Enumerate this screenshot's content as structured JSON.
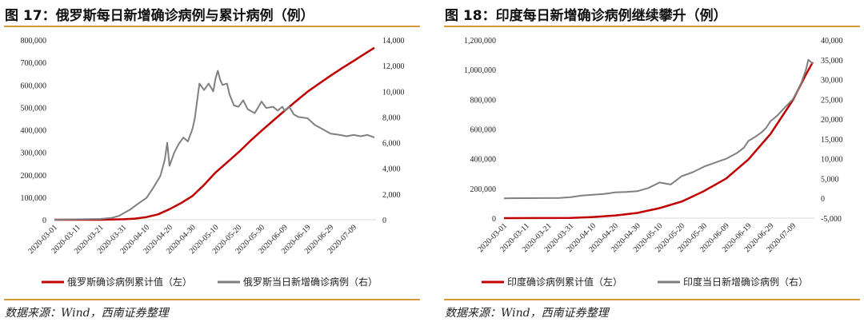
{
  "chart_data": [
    {
      "type": "line",
      "title": "图 17：俄罗斯每日新增确诊病例与累计病例（例）",
      "x_ticks": [
        "2020-03-01",
        "2020-03-11",
        "2020-03-21",
        "2020-03-31",
        "2020-04-10",
        "2020-04-20",
        "2020-04-30",
        "2020-05-10",
        "2020-05-20",
        "2020-05-30",
        "2020-06-09",
        "2020-06-19",
        "2020-06-29",
        "2020-07-09"
      ],
      "ylim_left": [
        0,
        800000
      ],
      "yticks_left": [
        "0",
        "100,000",
        "200,000",
        "300,000",
        "400,000",
        "500,000",
        "600,000",
        "700,000",
        "800,000"
      ],
      "ylim_right": [
        0,
        14000
      ],
      "yticks_right": [
        "0",
        "2,000",
        "4,000",
        "6,000",
        "8,000",
        "10,000",
        "12,000",
        "14,000"
      ],
      "series": [
        {
          "name": "俄罗斯确诊病例累计值（左）",
          "axis": "left",
          "color": "#c00000",
          "points": [
            [
              0,
              0
            ],
            [
              20,
              100
            ],
            [
              30,
              2300
            ],
            [
              35,
              5000
            ],
            [
              40,
              11900
            ],
            [
              45,
              24000
            ],
            [
              50,
              47000
            ],
            [
              55,
              74000
            ],
            [
              60,
              106000
            ],
            [
              65,
              155000
            ],
            [
              70,
              210000
            ],
            [
              75,
              255000
            ],
            [
              80,
              300000
            ],
            [
              85,
              350000
            ],
            [
              90,
              396000
            ],
            [
              95,
              441000
            ],
            [
              100,
              485000
            ],
            [
              105,
              528000
            ],
            [
              110,
              570000
            ],
            [
              115,
              606000
            ],
            [
              120,
              641000
            ],
            [
              125,
              675000
            ],
            [
              130,
              707000
            ],
            [
              135,
              740000
            ],
            [
              139,
              765000
            ]
          ]
        },
        {
          "name": "俄罗斯当日新增确诊病例（右）",
          "axis": "right",
          "color": "#808080",
          "points": [
            [
              0,
              0
            ],
            [
              20,
              60
            ],
            [
              25,
              150
            ],
            [
              28,
              300
            ],
            [
              30,
              500
            ],
            [
              33,
              800
            ],
            [
              36,
              1200
            ],
            [
              40,
              1700
            ],
            [
              43,
              2500
            ],
            [
              46,
              3400
            ],
            [
              48,
              4700
            ],
            [
              49,
              6000
            ],
            [
              50,
              4200
            ],
            [
              52,
              5200
            ],
            [
              54,
              5900
            ],
            [
              56,
              6400
            ],
            [
              58,
              6100
            ],
            [
              60,
              7100
            ],
            [
              61,
              7900
            ],
            [
              63,
              10600
            ],
            [
              65,
              10100
            ],
            [
              67,
              10600
            ],
            [
              69,
              10000
            ],
            [
              70,
              11000
            ],
            [
              71,
              11600
            ],
            [
              72,
              10900
            ],
            [
              73,
              10500
            ],
            [
              75,
              10600
            ],
            [
              76,
              9800
            ],
            [
              78,
              8900
            ],
            [
              80,
              8800
            ],
            [
              82,
              9300
            ],
            [
              84,
              8600
            ],
            [
              87,
              8300
            ],
            [
              89,
              8900
            ],
            [
              90,
              9200
            ],
            [
              92,
              8700
            ],
            [
              95,
              8800
            ],
            [
              97,
              8500
            ],
            [
              99,
              8800
            ],
            [
              100,
              8500
            ],
            [
              102,
              8800
            ],
            [
              104,
              8200
            ],
            [
              106,
              8000
            ],
            [
              110,
              7900
            ],
            [
              113,
              7400
            ],
            [
              116,
              7100
            ],
            [
              120,
              6700
            ],
            [
              124,
              6600
            ],
            [
              127,
              6500
            ],
            [
              130,
              6600
            ],
            [
              133,
              6500
            ],
            [
              136,
              6600
            ],
            [
              139,
              6400
            ]
          ]
        }
      ],
      "legend": [
        "俄罗斯确诊病例累计值（左）",
        "俄罗斯当日新增确诊病例（右）"
      ],
      "source": "数据来源：Wind，西南证券整理"
    },
    {
      "type": "line",
      "title": "图 18：印度每日新增确诊病例继续攀升（例）",
      "x_ticks": [
        "2020-03-01",
        "2020-03-11",
        "2020-03-21",
        "2020-03-31",
        "2020-04-10",
        "2020-04-20",
        "2020-04-30",
        "2020-05-10",
        "2020-05-20",
        "2020-05-30",
        "2020-06-09",
        "2020-06-19",
        "2020-06-29",
        "2020-07-09"
      ],
      "ylim_left": [
        0,
        1200000
      ],
      "yticks_left": [
        "0",
        "200,000",
        "400,000",
        "600,000",
        "800,000",
        "1,000,000",
        "1,200,000"
      ],
      "ylim_right": [
        -5000,
        40000
      ],
      "yticks_right": [
        "-5,000",
        "0",
        "5,000",
        "10,000",
        "15,000",
        "20,000",
        "25,000",
        "30,000",
        "35,000",
        "40,000"
      ],
      "series": [
        {
          "name": "印度确诊病例累计值（左）",
          "axis": "left",
          "color": "#c00000",
          "points": [
            [
              0,
              0
            ],
            [
              30,
              1400
            ],
            [
              40,
              7500
            ],
            [
              50,
              18000
            ],
            [
              60,
              35000
            ],
            [
              70,
              67000
            ],
            [
              80,
              112000
            ],
            [
              90,
              182000
            ],
            [
              100,
              267000
            ],
            [
              110,
              395000
            ],
            [
              120,
              567000
            ],
            [
              130,
              794000
            ],
            [
              136,
              970000
            ],
            [
              139,
              1050000
            ]
          ]
        },
        {
          "name": "印度当日新增确诊病例（右）",
          "axis": "right",
          "color": "#808080",
          "points": [
            [
              0,
              0
            ],
            [
              25,
              100
            ],
            [
              30,
              300
            ],
            [
              35,
              700
            ],
            [
              40,
              900
            ],
            [
              45,
              1100
            ],
            [
              50,
              1500
            ],
            [
              55,
              1600
            ],
            [
              60,
              1800
            ],
            [
              65,
              2600
            ],
            [
              70,
              4000
            ],
            [
              75,
              3500
            ],
            [
              80,
              5600
            ],
            [
              85,
              6600
            ],
            [
              90,
              8000
            ],
            [
              95,
              9000
            ],
            [
              100,
              10000
            ],
            [
              105,
              11500
            ],
            [
              108,
              12800
            ],
            [
              110,
              14500
            ],
            [
              113,
              15500
            ],
            [
              116,
              16700
            ],
            [
              118,
              17800
            ],
            [
              120,
              19500
            ],
            [
              123,
              20900
            ],
            [
              126,
              22700
            ],
            [
              130,
              25000
            ],
            [
              132,
              27000
            ],
            [
              134,
              29400
            ],
            [
              136,
              32700
            ],
            [
              137,
              35000
            ],
            [
              139,
              34000
            ]
          ]
        }
      ],
      "legend": [
        "印度确诊病例累计值（左）",
        "印度当日新增确诊病例（右）"
      ],
      "source": "数据来源：Wind，西南证券整理"
    }
  ]
}
